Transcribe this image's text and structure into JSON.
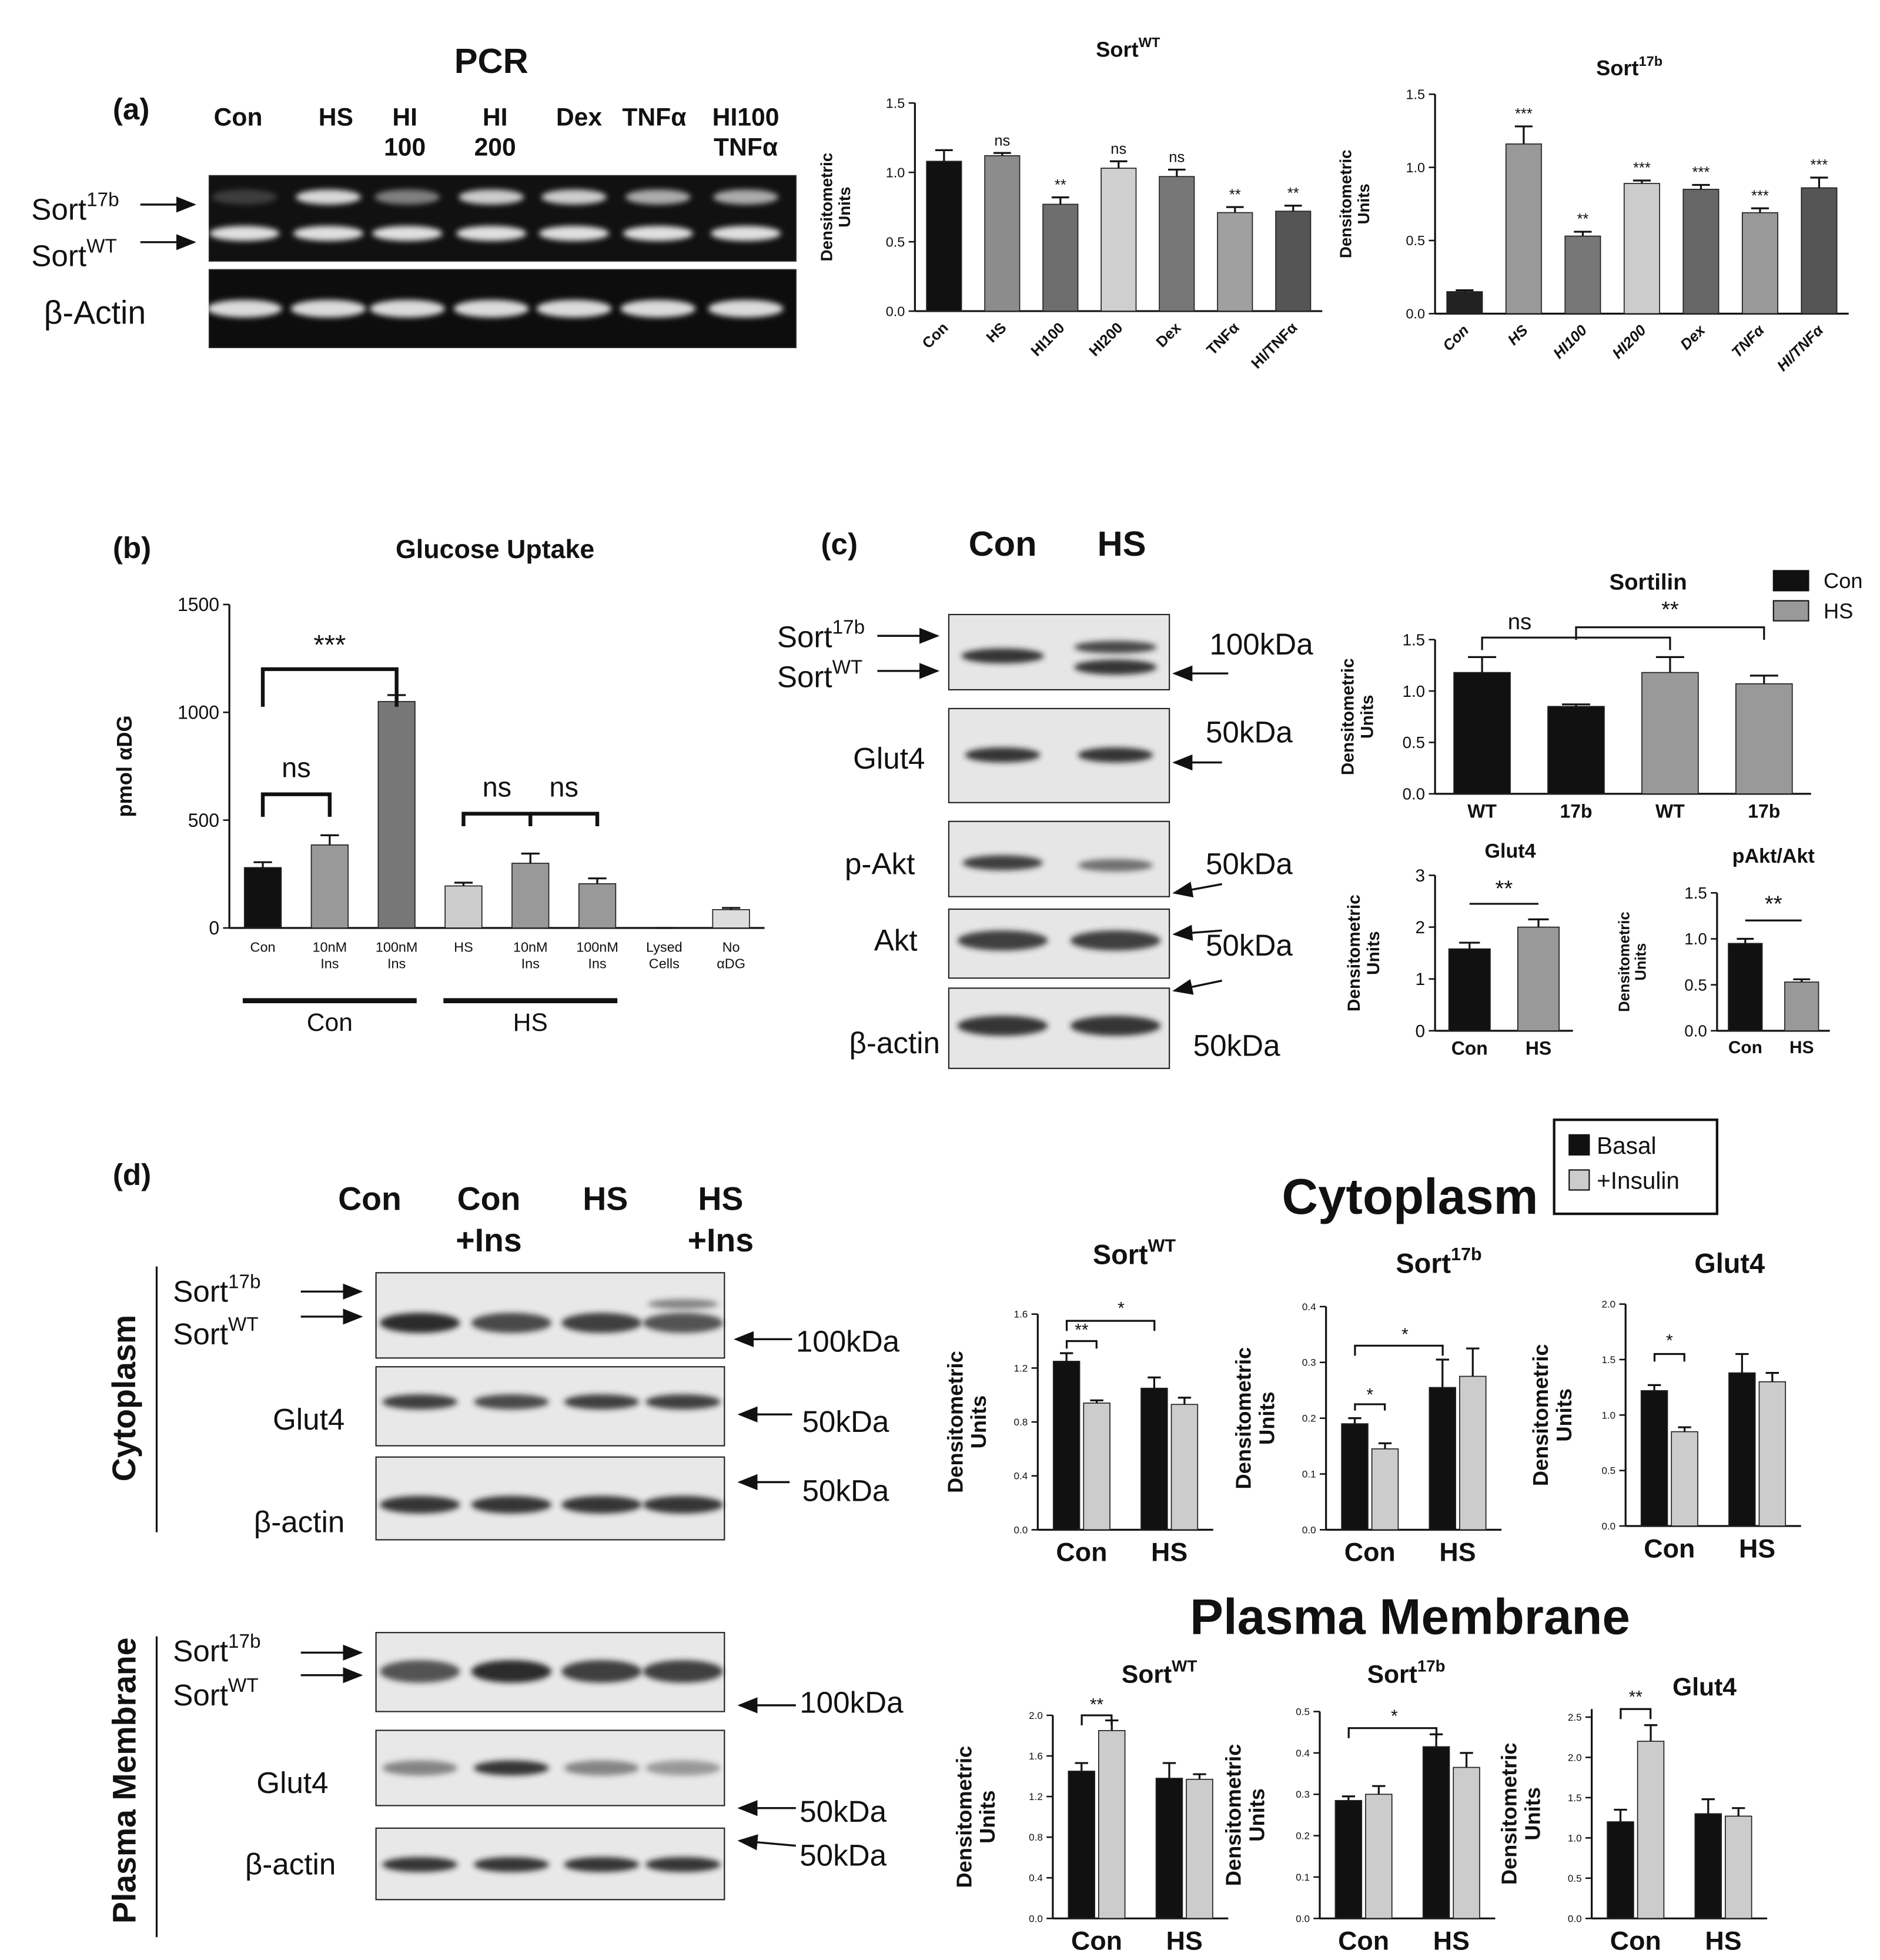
{
  "panel_labels": [
    "(a)",
    "(b)",
    "(c)",
    "(d)"
  ],
  "pcr": {
    "title": "PCR",
    "lanes": [
      [
        "Con"
      ],
      [
        "HS"
      ],
      [
        "HI",
        "100"
      ],
      [
        "HI",
        "200"
      ],
      [
        "Dex"
      ],
      [
        "TNFα"
      ],
      [
        "HI100",
        "TNFα"
      ]
    ],
    "bands": [
      {
        "name": "Sort",
        "sup": "17b"
      },
      {
        "name": "Sort",
        "sup": "WT"
      },
      {
        "name": "β-Actin"
      }
    ]
  },
  "blot_c": {
    "lanes": [
      "Con",
      "HS"
    ],
    "rows": [
      {
        "name": "Sort",
        "sup": "17b"
      },
      {
        "name": "Sort",
        "sup": "WT"
      },
      {
        "name": "Glut4"
      },
      {
        "name": "p-Akt"
      },
      {
        "name": "Akt"
      },
      {
        "name": "β-actin"
      }
    ],
    "kda": [
      "100kDa",
      "50kDa",
      "50kDa",
      "50kDa",
      "50kDa"
    ]
  },
  "blot_d": {
    "lanes": [
      [
        "Con"
      ],
      [
        "Con",
        "+Ins"
      ],
      [
        "HS"
      ],
      [
        "HS",
        "+Ins"
      ]
    ],
    "sections": [
      "Cytoplasm",
      "Plasma Membrane"
    ],
    "cyto_rows": [
      {
        "name": "Sort",
        "sup": "17b"
      },
      {
        "name": "Sort",
        "sup": "WT"
      },
      {
        "name": "Glut4"
      },
      {
        "name": "β-actin"
      }
    ],
    "cyto_kda": [
      "100kDa",
      "50kDa",
      "50kDa"
    ],
    "pm_rows": [
      {
        "name": "Sort",
        "sup": "17b"
      },
      {
        "name": "Sort",
        "sup": "WT"
      },
      {
        "name": "Glut4"
      },
      {
        "name": "β-actin"
      }
    ],
    "pm_kda": [
      "100kDa",
      "50kDa",
      "50kDa"
    ]
  },
  "section_titles": [
    "Cytoplasm",
    "Plasma Membrane"
  ],
  "chart_data": [
    {
      "type": "bar",
      "title": "Sort",
      "title_sup": "WT",
      "ylabel": [
        "Densitometric",
        "Units"
      ],
      "categories": [
        "Con",
        "HS",
        "HI100",
        "HI200",
        "Dex",
        "TNFα",
        "HI/TNFα"
      ],
      "values": [
        1.08,
        1.12,
        0.77,
        1.03,
        0.97,
        0.71,
        0.72
      ],
      "errors": [
        0.08,
        0.02,
        0.05,
        0.05,
        0.05,
        0.04,
        0.04
      ],
      "colors": [
        "#111111",
        "#8c8c8c",
        "#6e6e6e",
        "#cfcfcf",
        "#777777",
        "#a0a0a0",
        "#555555"
      ],
      "bar_labels": [
        null,
        "ns",
        "**",
        "ns",
        "ns",
        "**",
        "**"
      ],
      "ylim": [
        0,
        1.5
      ],
      "yticks": [
        {
          "value": 0,
          "label": "0.0"
        },
        0.5,
        {
          "value": 1,
          "label": "1.0"
        },
        1.5
      ],
      "x_label_rotation": 45
    },
    {
      "type": "bar",
      "title": "Sort",
      "title_sup": "17b",
      "ylabel": [
        "Densitometric",
        "Units"
      ],
      "categories": [
        "Con",
        "HS",
        "HI100",
        "HI200",
        "Dex",
        "TNFα",
        "HI/TNFα"
      ],
      "values": [
        0.15,
        1.16,
        0.53,
        0.89,
        0.85,
        0.69,
        0.86
      ],
      "errors": [
        0.01,
        0.12,
        0.03,
        0.02,
        0.03,
        0.03,
        0.07
      ],
      "colors": [
        "#222222",
        "#999999",
        "#777777",
        "#cccccc",
        "#666666",
        "#999999",
        "#555555"
      ],
      "bar_labels": [
        null,
        "***",
        "**",
        "***",
        "***",
        "***",
        "***"
      ],
      "ylim": [
        0,
        1.5
      ],
      "yticks": [
        {
          "value": 0,
          "label": "0.0"
        },
        0.5,
        {
          "value": 1,
          "label": "1.0"
        },
        1.5
      ],
      "x_label_rotation": 45,
      "x_label_style": "italic"
    },
    {
      "type": "bar",
      "title": "Glucose Uptake",
      "ylabel": [
        "pmol αDG"
      ],
      "categories": [
        [
          "Con"
        ],
        [
          "10nM",
          "Ins"
        ],
        [
          "100nM",
          "Ins"
        ],
        [
          "HS"
        ],
        [
          "10nM",
          "Ins"
        ],
        [
          "100nM",
          "Ins"
        ],
        [
          "Lysed",
          "Cells"
        ],
        [
          "No",
          "αDG"
        ]
      ],
      "values": [
        280,
        385,
        1050,
        195,
        300,
        205,
        0,
        85
      ],
      "errors": [
        25,
        45,
        30,
        15,
        45,
        25,
        0,
        8
      ],
      "colors": [
        "#111111",
        "#999999",
        "#777777",
        "#cccccc",
        "#999999",
        "#999999",
        "#bbbbbb",
        "#dddddd"
      ],
      "group_labels": [
        "Con",
        "HS"
      ],
      "brackets": [
        "***",
        "ns",
        "ns",
        "ns"
      ],
      "ylim": [
        0,
        1500
      ],
      "yticks": [
        0,
        500,
        1000,
        1500
      ]
    },
    {
      "type": "bar",
      "title": "Sortilin",
      "ylabel": [
        "Densitometric",
        "Units"
      ],
      "categories": [
        "WT",
        "17b",
        "WT",
        "17b"
      ],
      "series": [
        {
          "name": "Con",
          "color": "#111111",
          "values": [
            1.18,
            0.85,
            null,
            null
          ],
          "errors": [
            0.15,
            0.02,
            null,
            null
          ]
        },
        {
          "name": "HS",
          "color": "#999999",
          "values": [
            null,
            null,
            1.18,
            1.07
          ],
          "errors": [
            null,
            null,
            0.15,
            0.08
          ]
        }
      ],
      "legend": "top-right",
      "brackets": [
        "ns",
        "**"
      ],
      "ylim": [
        0,
        1.5
      ],
      "yticks": [
        {
          "value": 0,
          "label": "0.0"
        },
        0.5,
        {
          "value": 1,
          "label": "1.0"
        },
        1.5
      ]
    },
    {
      "type": "bar",
      "title": "Glut4",
      "ylabel": [
        "Densitometric",
        "Units"
      ],
      "categories": [
        "Con",
        "HS"
      ],
      "values": [
        1.58,
        2.0
      ],
      "errors": [
        0.12,
        0.15
      ],
      "colors": [
        "#111111",
        "#999999"
      ],
      "brackets": [
        "**"
      ],
      "ylim": [
        0,
        3
      ],
      "yticks": [
        0,
        1,
        2,
        3
      ]
    },
    {
      "type": "bar",
      "title": "pAkt/Akt",
      "ylabel": [
        "Densitometric",
        "Units"
      ],
      "categories": [
        "Con",
        "HS"
      ],
      "values": [
        0.95,
        0.53
      ],
      "errors": [
        0.05,
        0.03
      ],
      "colors": [
        "#111111",
        "#999999"
      ],
      "brackets": [
        "**"
      ],
      "ylim": [
        0,
        1.5
      ],
      "yticks": [
        {
          "value": 0,
          "label": "0.0"
        },
        0.5,
        {
          "value": 1,
          "label": "1.0"
        },
        1.5
      ]
    },
    {
      "type": "bar",
      "title": "Sort",
      "title_sup": "WT",
      "ylabel": [
        "Densitometric",
        "Units"
      ],
      "categories": [
        "Con",
        "HS"
      ],
      "series": [
        {
          "name": "Basal",
          "color": "#111111",
          "values": [
            1.25,
            1.05
          ],
          "errors": [
            0.06,
            0.08
          ]
        },
        {
          "name": "+Insulin",
          "color": "#cccccc",
          "values": [
            0.94,
            0.93
          ],
          "errors": [
            0.02,
            0.05
          ]
        }
      ],
      "legend": "top-right",
      "brackets": [
        "**",
        "*"
      ],
      "ylim": [
        0,
        1.6
      ],
      "yticks": [
        {
          "value": 0,
          "label": "0.0"
        },
        0.4,
        0.8,
        1.2,
        1.6
      ]
    },
    {
      "type": "bar",
      "title": "Sort",
      "title_sup": "17b",
      "ylabel": [
        "Densitometric",
        "Units"
      ],
      "categories": [
        "Con",
        "HS"
      ],
      "series": [
        {
          "color": "#111111",
          "values": [
            0.19,
            0.255
          ],
          "errors": [
            0.01,
            0.05
          ]
        },
        {
          "color": "#cccccc",
          "values": [
            0.145,
            0.275
          ],
          "errors": [
            0.01,
            0.05
          ]
        }
      ],
      "brackets": [
        "*",
        "*"
      ],
      "ylim": [
        0,
        0.4
      ],
      "yticks": [
        {
          "value": 0,
          "label": "0.0"
        },
        0.1,
        0.2,
        0.3,
        0.4
      ]
    },
    {
      "type": "bar",
      "title": "Glut4",
      "ylabel": [
        "Densitometric",
        "Units"
      ],
      "categories": [
        "Con",
        "HS"
      ],
      "series": [
        {
          "color": "#111111",
          "values": [
            1.22,
            1.38
          ],
          "errors": [
            0.05,
            0.17
          ]
        },
        {
          "color": "#cccccc",
          "values": [
            0.85,
            1.3
          ],
          "errors": [
            0.04,
            0.08
          ]
        }
      ],
      "brackets": [
        "*"
      ],
      "ylim": [
        0,
        2
      ],
      "yticks": [
        {
          "value": 0,
          "label": "0.0"
        },
        0.5,
        {
          "value": 1,
          "label": "1.0"
        },
        1.5,
        {
          "value": 2,
          "label": "2.0"
        }
      ]
    },
    {
      "type": "bar",
      "title": "Sort",
      "title_sup": "WT",
      "ylabel": [
        "Densitometric",
        "Units"
      ],
      "categories": [
        "Con",
        "HS"
      ],
      "series": [
        {
          "color": "#111111",
          "values": [
            1.45,
            1.38
          ],
          "errors": [
            0.08,
            0.15
          ]
        },
        {
          "color": "#cccccc",
          "values": [
            1.85,
            1.37
          ],
          "errors": [
            0.1,
            0.05
          ]
        }
      ],
      "brackets": [
        "**"
      ],
      "ylim": [
        0,
        2
      ],
      "yticks": [
        {
          "value": 0,
          "label": "0.0"
        },
        0.4,
        0.8,
        1.2,
        1.6,
        {
          "value": 2,
          "label": "2.0"
        }
      ]
    },
    {
      "type": "bar",
      "title": "Sort",
      "title_sup": "17b",
      "ylabel": [
        "Densitometric",
        "Units"
      ],
      "categories": [
        "Con",
        "HS"
      ],
      "series": [
        {
          "color": "#111111",
          "values": [
            0.285,
            0.415
          ],
          "errors": [
            0.01,
            0.03
          ]
        },
        {
          "color": "#cccccc",
          "values": [
            0.3,
            0.365
          ],
          "errors": [
            0.02,
            0.035
          ]
        }
      ],
      "brackets": [
        "*"
      ],
      "ylim": [
        0,
        0.5
      ],
      "yticks": [
        {
          "value": 0,
          "label": "0.0"
        },
        0.1,
        0.2,
        0.3,
        0.4,
        0.5
      ]
    },
    {
      "type": "bar",
      "title": "Glut4",
      "ylabel": [
        "Densitometric",
        "Units"
      ],
      "categories": [
        "Con",
        "HS"
      ],
      "series": [
        {
          "color": "#111111",
          "values": [
            1.2,
            1.3
          ],
          "errors": [
            0.15,
            0.18
          ]
        },
        {
          "color": "#cccccc",
          "values": [
            2.2,
            1.27
          ],
          "errors": [
            0.2,
            0.1
          ]
        }
      ],
      "brackets": [
        "**"
      ],
      "ylim": [
        0,
        2.6
      ],
      "yticks": [
        {
          "value": 0,
          "label": "0.0"
        },
        0.5,
        {
          "value": 1,
          "label": "1.0"
        },
        1.5,
        {
          "value": 2,
          "label": "2.0"
        },
        2.5
      ]
    }
  ]
}
